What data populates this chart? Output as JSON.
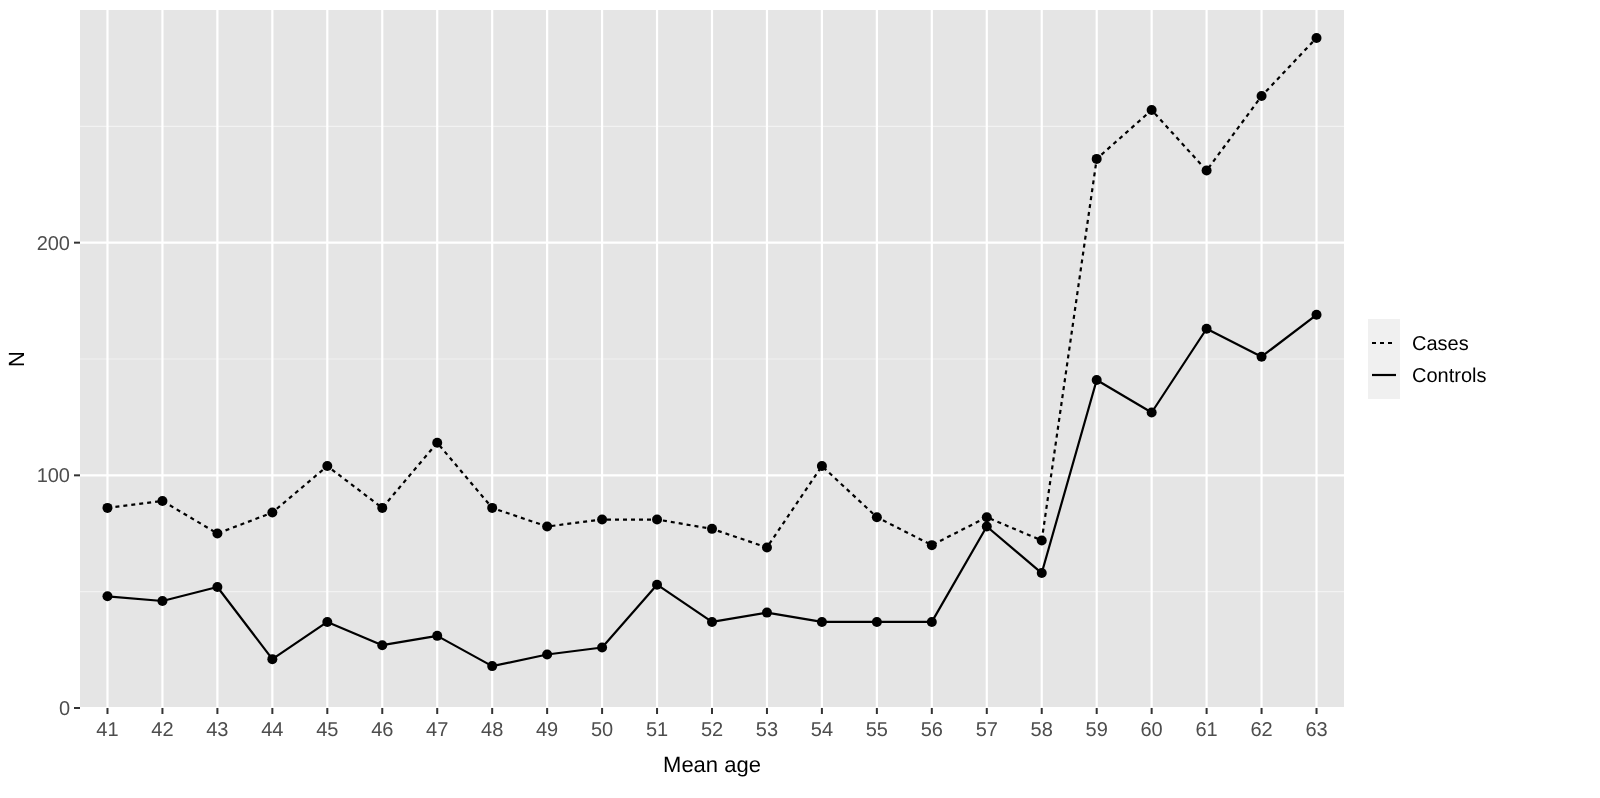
{
  "chart_data": {
    "type": "line",
    "xlabel": "Mean age",
    "ylabel": "N",
    "categories": [
      "41",
      "42",
      "43",
      "44",
      "45",
      "46",
      "47",
      "48",
      "49",
      "50",
      "51",
      "52",
      "53",
      "54",
      "55",
      "56",
      "57",
      "58",
      "59",
      "60",
      "61",
      "62",
      "63"
    ],
    "series": [
      {
        "name": "Cases",
        "color": "#000000",
        "line_style": "dotted",
        "values": [
          86,
          89,
          75,
          84,
          104,
          86,
          114,
          86,
          78,
          81,
          81,
          77,
          69,
          104,
          82,
          70,
          82,
          72,
          236,
          257,
          231,
          263,
          288
        ]
      },
      {
        "name": "Controls",
        "color": "#000000",
        "line_style": "solid",
        "values": [
          48,
          46,
          52,
          21,
          37,
          27,
          31,
          18,
          23,
          26,
          53,
          37,
          41,
          37,
          37,
          37,
          78,
          58,
          141,
          127,
          163,
          151,
          169
        ]
      }
    ],
    "ylim": [
      0,
      300
    ],
    "yticks": [
      0,
      100,
      200
    ],
    "grid": true,
    "legend": "right",
    "marker": "circle"
  }
}
